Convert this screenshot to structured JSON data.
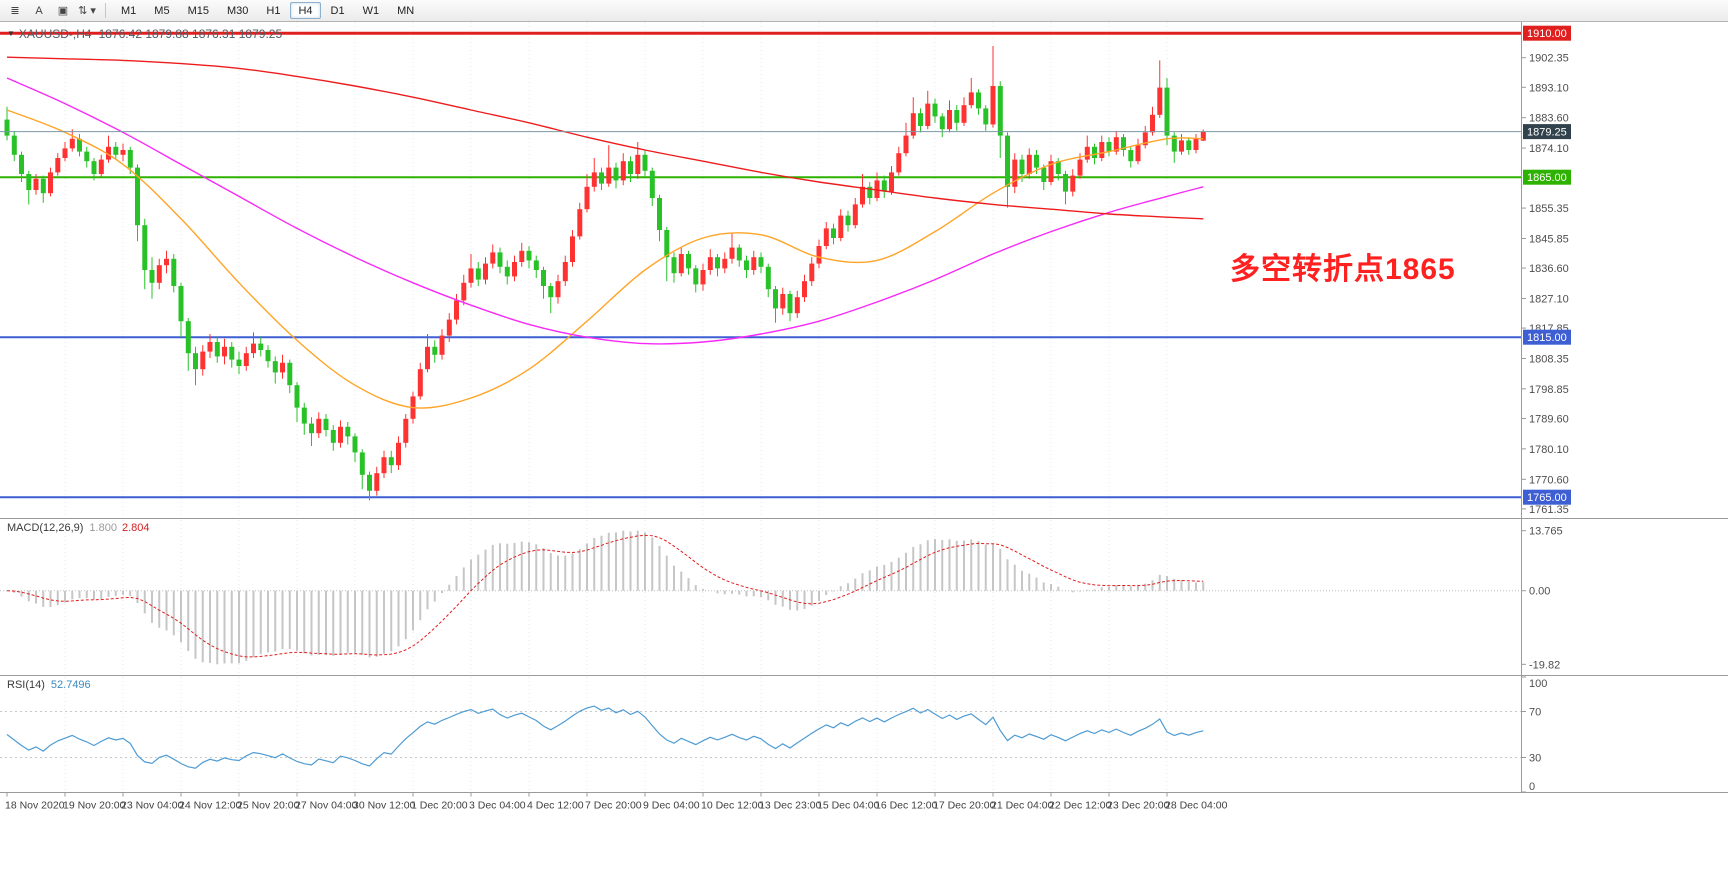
{
  "toolbar": {
    "tools": [
      {
        "name": "menu-grid-icon",
        "glyph": "≣"
      },
      {
        "name": "text-tool-icon",
        "glyph": "A"
      },
      {
        "name": "label-tool-icon",
        "glyph": "▣"
      },
      {
        "name": "arrows-dropdown-icon",
        "glyph": "⇅ ▾"
      }
    ],
    "timeframes": [
      {
        "label": "M1",
        "active": false
      },
      {
        "label": "M5",
        "active": false
      },
      {
        "label": "M15",
        "active": false
      },
      {
        "label": "M30",
        "active": false
      },
      {
        "label": "H1",
        "active": false
      },
      {
        "label": "H4",
        "active": true
      },
      {
        "label": "D1",
        "active": false
      },
      {
        "label": "W1",
        "active": false
      },
      {
        "label": "MN",
        "active": false
      }
    ]
  },
  "chart": {
    "title_icon": "▼",
    "title_symbol": "XAUUSD-,H4",
    "ohlc_text": "1876.42 1879.88 1876.31 1879.25",
    "annotation": {
      "text": "多空转折点1865",
      "color": "#FF2020"
    },
    "price_axis_ticks": [
      "1902.35",
      "1893.10",
      "1883.60",
      "1874.10",
      "1855.35",
      "1845.85",
      "1836.60",
      "1827.10",
      "1817.85",
      "1808.35",
      "1798.85",
      "1789.60",
      "1780.10",
      "1770.60",
      "1761.35"
    ],
    "hlines": [
      {
        "price": 1910.0,
        "label": "1910.00",
        "color": "#E01F1F",
        "thickness": 3
      },
      {
        "price": 1865.0,
        "label": "1865.00",
        "color": "#2DB200",
        "thickness": 2
      },
      {
        "price": 1815.0,
        "label": "1815.00",
        "color": "#3D5FD3",
        "thickness": 2
      },
      {
        "price": 1765.0,
        "label": "1765.00",
        "color": "#3D5FD3",
        "thickness": 2
      }
    ],
    "bid": {
      "price": 1879.25,
      "label": "1879.25",
      "line_color": "#7C98A6",
      "label_bg": "#31424C"
    },
    "colors": {
      "bull": "#FF3232",
      "bear": "#28C128",
      "grid": "#E7E7E7",
      "axis_text": "#4E4E4E",
      "border": "#9A9A9A",
      "macd_hist": "#C6C6C6",
      "macd_signal": "#E01F1F",
      "rsi_line": "#4E9BD4"
    }
  },
  "indicators": {
    "macd": {
      "label": "MACD(12,26,9)",
      "value_main": "1.800",
      "value_signal": "2.804",
      "fast": 12,
      "slow": 26,
      "signal": 9,
      "axis_labels": [
        "13.765",
        "0.00",
        "-19.82"
      ]
    },
    "rsi": {
      "label": "RSI(14)",
      "value": "52.7496",
      "period": 14,
      "levels": [
        30,
        70
      ],
      "axis_labels": [
        "100",
        "70",
        "30",
        "0"
      ]
    }
  },
  "chart_data": {
    "type": "candlestick",
    "symbol": "XAUUSD-",
    "timeframe": "H4",
    "title": "XAUUSD-,H4 1876.42 1879.88 1876.31 1879.25",
    "y_axis_range": [
      1758.5,
      1913.5
    ],
    "x_label_bars": [
      0,
      8,
      16,
      24,
      32,
      40,
      48,
      56,
      64,
      72,
      80,
      88,
      96,
      104,
      112,
      120,
      128,
      136,
      144,
      152,
      160
    ],
    "x_labels": [
      "18 Nov 2020",
      "19 Nov 20:00",
      "23 Nov 04:00",
      "24 Nov 12:00",
      "25 Nov 20:00",
      "27 Nov 04:00",
      "30 Nov 12:00",
      "1 Dec 20:00",
      "3 Dec 04:00",
      "4 Dec 12:00",
      "7 Dec 20:00",
      "9 Dec 04:00",
      "10 Dec 12:00",
      "13 Dec 23:00",
      "15 Dec 04:00",
      "16 Dec 12:00",
      "17 Dec 20:00",
      "21 Dec 04:00",
      "22 Dec 12:00",
      "23 Dec 20:00",
      "28 Dec 04:00"
    ],
    "candles": [
      [
        1883.0,
        1887.0,
        1876.5,
        1878.0
      ],
      [
        1878.0,
        1879.5,
        1870.0,
        1872.0
      ],
      [
        1872.0,
        1873.0,
        1863.5,
        1866.0
      ],
      [
        1866.0,
        1867.0,
        1856.5,
        1861.0
      ],
      [
        1861.0,
        1866.0,
        1859.5,
        1864.5
      ],
      [
        1864.5,
        1865.5,
        1857.0,
        1860.0
      ],
      [
        1860.0,
        1868.0,
        1859.0,
        1866.5
      ],
      [
        1866.5,
        1872.5,
        1865.5,
        1871.0
      ],
      [
        1871.0,
        1876.0,
        1870.0,
        1874.0
      ],
      [
        1874.0,
        1880.0,
        1873.0,
        1877.0
      ],
      [
        1877.0,
        1878.5,
        1871.5,
        1873.0
      ],
      [
        1873.0,
        1874.5,
        1868.0,
        1870.0
      ],
      [
        1870.0,
        1871.0,
        1864.0,
        1866.0
      ],
      [
        1866.0,
        1872.0,
        1865.0,
        1870.5
      ],
      [
        1870.5,
        1878.0,
        1869.5,
        1874.5
      ],
      [
        1874.5,
        1876.0,
        1870.5,
        1872.0
      ],
      [
        1872.0,
        1875.5,
        1870.0,
        1873.5
      ],
      [
        1873.5,
        1874.5,
        1866.0,
        1868.0
      ],
      [
        1868.0,
        1869.0,
        1845.0,
        1850.0
      ],
      [
        1850.0,
        1852.0,
        1830.0,
        1836.0
      ],
      [
        1836.0,
        1840.0,
        1827.0,
        1832.0
      ],
      [
        1832.0,
        1839.5,
        1830.0,
        1837.5
      ],
      [
        1837.5,
        1842.0,
        1835.0,
        1839.5
      ],
      [
        1839.5,
        1841.0,
        1829.0,
        1831.0
      ],
      [
        1831.0,
        1832.0,
        1815.0,
        1820.0
      ],
      [
        1820.0,
        1821.0,
        1804.5,
        1810.0
      ],
      [
        1810.0,
        1812.0,
        1800.0,
        1805.0
      ],
      [
        1805.0,
        1812.5,
        1803.0,
        1810.5
      ],
      [
        1810.5,
        1816.0,
        1808.5,
        1813.5
      ],
      [
        1813.5,
        1815.0,
        1807.0,
        1809.0
      ],
      [
        1809.0,
        1814.5,
        1806.5,
        1812.0
      ],
      [
        1812.0,
        1813.5,
        1805.5,
        1808.0
      ],
      [
        1808.0,
        1810.5,
        1803.5,
        1806.0
      ],
      [
        1806.0,
        1812.0,
        1804.5,
        1810.0
      ],
      [
        1810.0,
        1816.5,
        1808.5,
        1813.0
      ],
      [
        1813.0,
        1815.0,
        1809.0,
        1811.0
      ],
      [
        1811.0,
        1812.5,
        1805.5,
        1807.5
      ],
      [
        1807.5,
        1809.0,
        1800.5,
        1804.0
      ],
      [
        1804.0,
        1809.5,
        1802.0,
        1807.0
      ],
      [
        1807.0,
        1808.0,
        1797.5,
        1800.0
      ],
      [
        1800.0,
        1801.0,
        1788.5,
        1793.0
      ],
      [
        1793.0,
        1794.5,
        1784.5,
        1788.0
      ],
      [
        1788.0,
        1790.0,
        1781.0,
        1785.0
      ],
      [
        1785.0,
        1791.5,
        1783.5,
        1789.5
      ],
      [
        1789.5,
        1791.0,
        1784.0,
        1786.0
      ],
      [
        1786.0,
        1787.5,
        1779.5,
        1782.0
      ],
      [
        1782.0,
        1789.0,
        1780.5,
        1787.0
      ],
      [
        1787.0,
        1788.5,
        1781.5,
        1784.0
      ],
      [
        1784.0,
        1785.0,
        1776.0,
        1779.0
      ],
      [
        1779.0,
        1780.0,
        1767.5,
        1772.0
      ],
      [
        1772.0,
        1773.0,
        1764.0,
        1767.0
      ],
      [
        1767.0,
        1774.5,
        1765.5,
        1772.5
      ],
      [
        1772.5,
        1779.5,
        1771.0,
        1777.5
      ],
      [
        1777.5,
        1779.5,
        1772.5,
        1775.0
      ],
      [
        1775.0,
        1784.0,
        1773.5,
        1782.0
      ],
      [
        1782.0,
        1791.0,
        1780.5,
        1789.5
      ],
      [
        1789.5,
        1798.0,
        1788.0,
        1796.5
      ],
      [
        1796.5,
        1807.0,
        1795.5,
        1805.0
      ],
      [
        1805.0,
        1816.0,
        1804.0,
        1812.0
      ],
      [
        1812.0,
        1814.0,
        1807.0,
        1809.5
      ],
      [
        1809.5,
        1817.5,
        1808.0,
        1815.5
      ],
      [
        1815.5,
        1822.5,
        1813.5,
        1820.5
      ],
      [
        1820.5,
        1828.5,
        1819.0,
        1826.5
      ],
      [
        1826.5,
        1834.5,
        1825.0,
        1832.0
      ],
      [
        1832.0,
        1841.0,
        1830.5,
        1836.5
      ],
      [
        1836.5,
        1838.5,
        1831.0,
        1833.0
      ],
      [
        1833.0,
        1840.0,
        1831.5,
        1838.0
      ],
      [
        1838.0,
        1844.0,
        1836.5,
        1841.5
      ],
      [
        1841.5,
        1843.0,
        1835.0,
        1837.0
      ],
      [
        1837.0,
        1839.0,
        1831.5,
        1834.0
      ],
      [
        1834.0,
        1840.5,
        1832.5,
        1838.5
      ],
      [
        1838.5,
        1844.5,
        1837.0,
        1842.0
      ],
      [
        1842.0,
        1843.5,
        1836.5,
        1839.0
      ],
      [
        1839.0,
        1840.5,
        1833.5,
        1836.0
      ],
      [
        1836.0,
        1837.0,
        1827.0,
        1831.0
      ],
      [
        1831.0,
        1832.0,
        1822.5,
        1827.5
      ],
      [
        1827.5,
        1834.5,
        1825.5,
        1832.5
      ],
      [
        1832.5,
        1840.5,
        1831.0,
        1838.5
      ],
      [
        1838.5,
        1848.5,
        1837.0,
        1846.5
      ],
      [
        1846.5,
        1857.0,
        1845.5,
        1855.0
      ],
      [
        1855.0,
        1866.0,
        1854.0,
        1862.0
      ],
      [
        1862.0,
        1871.0,
        1860.5,
        1866.5
      ],
      [
        1866.5,
        1868.0,
        1861.0,
        1863.0
      ],
      [
        1863.0,
        1875.0,
        1862.0,
        1868.0
      ],
      [
        1868.0,
        1869.5,
        1861.5,
        1864.0
      ],
      [
        1864.0,
        1872.5,
        1862.5,
        1870.0
      ],
      [
        1870.0,
        1871.5,
        1863.5,
        1866.0
      ],
      [
        1866.0,
        1876.0,
        1864.5,
        1872.0
      ],
      [
        1872.0,
        1873.5,
        1865.0,
        1867.0
      ],
      [
        1867.0,
        1868.0,
        1856.0,
        1858.5
      ],
      [
        1858.5,
        1859.5,
        1845.0,
        1848.5
      ],
      [
        1848.5,
        1849.5,
        1832.5,
        1840.0
      ],
      [
        1840.0,
        1841.5,
        1832.0,
        1835.0
      ],
      [
        1835.0,
        1843.0,
        1834.0,
        1841.0
      ],
      [
        1841.0,
        1842.0,
        1834.5,
        1836.5
      ],
      [
        1836.5,
        1837.5,
        1829.0,
        1831.5
      ],
      [
        1831.5,
        1838.0,
        1829.5,
        1836.0
      ],
      [
        1836.0,
        1842.5,
        1834.5,
        1840.0
      ],
      [
        1840.0,
        1841.0,
        1834.0,
        1836.5
      ],
      [
        1836.5,
        1841.5,
        1835.0,
        1839.5
      ],
      [
        1839.5,
        1847.5,
        1838.0,
        1843.0
      ],
      [
        1843.0,
        1844.0,
        1837.0,
        1839.0
      ],
      [
        1839.0,
        1840.5,
        1833.5,
        1836.0
      ],
      [
        1836.0,
        1842.0,
        1834.5,
        1840.0
      ],
      [
        1840.0,
        1841.5,
        1835.0,
        1837.0
      ],
      [
        1837.0,
        1838.0,
        1827.5,
        1830.0
      ],
      [
        1830.0,
        1831.0,
        1819.5,
        1824.0
      ],
      [
        1824.0,
        1830.5,
        1822.0,
        1828.5
      ],
      [
        1828.5,
        1829.5,
        1820.0,
        1822.5
      ],
      [
        1822.5,
        1829.5,
        1821.0,
        1827.5
      ],
      [
        1827.5,
        1834.5,
        1826.0,
        1832.5
      ],
      [
        1832.5,
        1840.0,
        1831.0,
        1838.0
      ],
      [
        1838.0,
        1845.5,
        1836.5,
        1843.5
      ],
      [
        1843.5,
        1851.0,
        1842.5,
        1849.0
      ],
      [
        1849.0,
        1850.5,
        1844.0,
        1846.0
      ],
      [
        1846.0,
        1855.0,
        1845.0,
        1853.0
      ],
      [
        1853.0,
        1854.5,
        1848.0,
        1850.0
      ],
      [
        1850.0,
        1858.5,
        1849.0,
        1856.5
      ],
      [
        1856.5,
        1866.0,
        1855.5,
        1862.0
      ],
      [
        1862.0,
        1863.5,
        1856.5,
        1858.5
      ],
      [
        1858.5,
        1866.5,
        1857.5,
        1864.0
      ],
      [
        1864.0,
        1865.5,
        1858.5,
        1860.5
      ],
      [
        1860.5,
        1868.5,
        1859.5,
        1866.5
      ],
      [
        1866.5,
        1874.5,
        1865.5,
        1872.5
      ],
      [
        1872.5,
        1882.0,
        1871.5,
        1878.0
      ],
      [
        1878.0,
        1890.0,
        1877.0,
        1885.0
      ],
      [
        1885.0,
        1886.5,
        1879.0,
        1881.0
      ],
      [
        1881.0,
        1892.0,
        1880.0,
        1888.0
      ],
      [
        1888.0,
        1889.5,
        1882.0,
        1884.0
      ],
      [
        1884.0,
        1885.0,
        1877.5,
        1880.0
      ],
      [
        1880.0,
        1889.0,
        1879.0,
        1886.0
      ],
      [
        1886.0,
        1887.5,
        1879.5,
        1882.0
      ],
      [
        1882.0,
        1890.0,
        1881.0,
        1887.5
      ],
      [
        1887.5,
        1896.0,
        1886.5,
        1891.5
      ],
      [
        1891.5,
        1892.5,
        1884.5,
        1886.5
      ],
      [
        1886.5,
        1887.5,
        1879.5,
        1881.5
      ],
      [
        1881.5,
        1906.0,
        1880.5,
        1893.5
      ],
      [
        1893.5,
        1895.0,
        1871.0,
        1878.0
      ],
      [
        1878.0,
        1879.0,
        1855.5,
        1862.0
      ],
      [
        1862.0,
        1872.5,
        1860.0,
        1870.5
      ],
      [
        1870.5,
        1872.0,
        1863.5,
        1866.0
      ],
      [
        1866.0,
        1874.0,
        1864.5,
        1872.0
      ],
      [
        1872.0,
        1873.5,
        1866.0,
        1868.0
      ],
      [
        1868.0,
        1869.0,
        1861.0,
        1863.5
      ],
      [
        1863.5,
        1872.0,
        1862.5,
        1870.0
      ],
      [
        1870.0,
        1871.0,
        1864.0,
        1866.0
      ],
      [
        1866.0,
        1867.0,
        1856.5,
        1860.5
      ],
      [
        1860.5,
        1867.5,
        1859.0,
        1865.5
      ],
      [
        1865.5,
        1872.5,
        1864.5,
        1870.5
      ],
      [
        1870.5,
        1878.0,
        1869.5,
        1874.5
      ],
      [
        1874.5,
        1875.5,
        1869.0,
        1871.0
      ],
      [
        1871.0,
        1878.0,
        1870.0,
        1876.0
      ],
      [
        1876.0,
        1877.5,
        1871.5,
        1873.0
      ],
      [
        1873.0,
        1879.5,
        1872.0,
        1877.5
      ],
      [
        1877.5,
        1878.5,
        1871.5,
        1873.5
      ],
      [
        1873.5,
        1874.5,
        1868.0,
        1870.0
      ],
      [
        1870.0,
        1877.0,
        1869.0,
        1875.0
      ],
      [
        1875.0,
        1881.0,
        1874.0,
        1879.0
      ],
      [
        1879.0,
        1887.0,
        1878.0,
        1884.5
      ],
      [
        1884.5,
        1901.5,
        1883.5,
        1893.0
      ],
      [
        1893.0,
        1896.0,
        1875.0,
        1878.0
      ],
      [
        1878.0,
        1879.0,
        1869.5,
        1873.0
      ],
      [
        1873.0,
        1878.5,
        1872.0,
        1876.5
      ],
      [
        1876.5,
        1877.5,
        1872.0,
        1873.5
      ],
      [
        1873.5,
        1878.5,
        1872.5,
        1877.0
      ],
      [
        1876.4,
        1879.9,
        1876.3,
        1879.25
      ]
    ],
    "ma_bars": [
      0,
      8,
      16,
      24,
      32,
      40,
      48,
      56,
      64,
      72,
      80,
      88,
      96,
      104,
      112,
      120,
      128,
      136,
      144,
      152,
      160,
      165
    ],
    "moving_averages": [
      {
        "name": "fast-ma",
        "color": "#FFA426",
        "prices": [
          1886,
          1879,
          1869,
          1852,
          1832,
          1814,
          1800,
          1793,
          1796,
          1805,
          1820,
          1836,
          1846,
          1847,
          1840,
          1839,
          1848,
          1860,
          1869,
          1873,
          1877,
          1877
        ]
      },
      {
        "name": "medium-ma",
        "color": "#F829F8",
        "prices": [
          1896,
          1888,
          1879,
          1869,
          1859,
          1849,
          1840,
          1832,
          1825,
          1819,
          1815,
          1813,
          1813.5,
          1816,
          1820,
          1826,
          1833,
          1841,
          1848,
          1854,
          1859,
          1862
        ]
      },
      {
        "name": "slow-ma",
        "color": "#EE1C1C",
        "prices": [
          1902.5,
          1902,
          1901.5,
          1900.5,
          1899,
          1896.5,
          1893.5,
          1890,
          1886,
          1882,
          1877.5,
          1873.5,
          1870,
          1866.5,
          1863.5,
          1861,
          1858.5,
          1856.5,
          1855,
          1853.5,
          1852.5,
          1852
        ]
      }
    ]
  }
}
